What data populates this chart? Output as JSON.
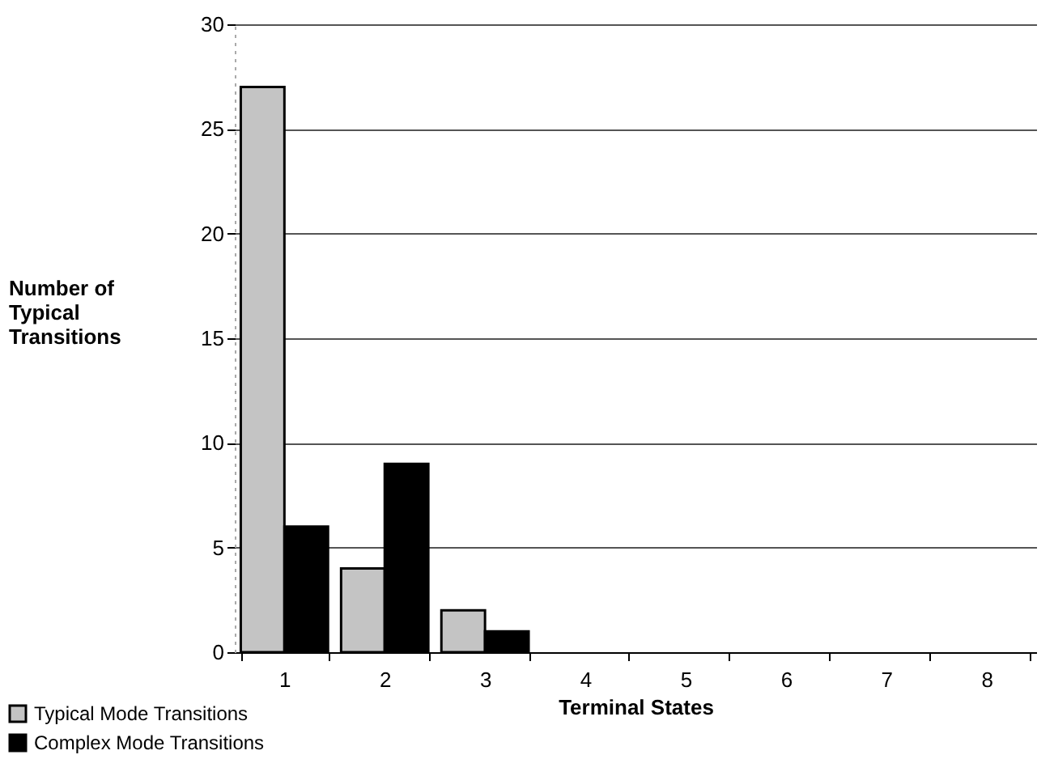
{
  "chart_data": {
    "type": "bar",
    "xlabel": "Terminal States",
    "ylabel": "Number of Typical Transitions",
    "categories": [
      "1",
      "2",
      "3",
      "4",
      "5",
      "6",
      "7",
      "8"
    ],
    "series": [
      {
        "name": "Typical Mode Transitions",
        "color": "#c4c4c4",
        "values": [
          27,
          4,
          2,
          0,
          0,
          0,
          0,
          0
        ]
      },
      {
        "name": "Complex Mode Transitions",
        "color": "#000000",
        "values": [
          6,
          9,
          1,
          0,
          0,
          0,
          0,
          0
        ]
      }
    ],
    "ylim": [
      0,
      30
    ],
    "yticks": [
      0,
      5,
      10,
      15,
      20,
      25,
      30
    ],
    "grid": "y",
    "legend": "bottom left"
  }
}
